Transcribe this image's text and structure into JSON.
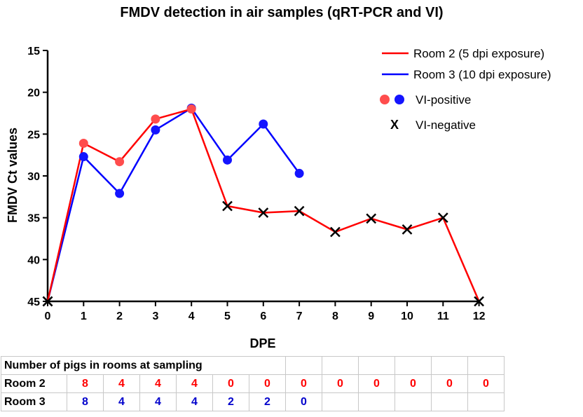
{
  "chart_data": {
    "type": "line",
    "title": "FMDV detection in air samples (qRT-PCR and VI)",
    "xlabel": "DPE",
    "ylabel": "FMDV Ct values",
    "x_ticks": [
      "0",
      "1",
      "2",
      "3",
      "4",
      "5",
      "6",
      "7",
      "8",
      "9",
      "10",
      "11",
      "12"
    ],
    "y_ticks": [
      "15",
      "20",
      "25",
      "30",
      "35",
      "40",
      "45"
    ],
    "xlim": [
      0,
      12
    ],
    "ylim": [
      45,
      15
    ],
    "y_inverted": true,
    "series": [
      {
        "name": "Room 2 (5 dpi exposure)",
        "color": "#ff0000",
        "marker_color": "#ff4d4d",
        "x": [
          0,
          1,
          2,
          3,
          4,
          5,
          6,
          7,
          8,
          9,
          10,
          11,
          12
        ],
        "y": [
          45,
          26.1,
          28.3,
          23.2,
          22.0,
          33.6,
          34.4,
          34.2,
          36.7,
          35.1,
          36.4,
          35.0,
          45
        ],
        "vi": [
          "neg",
          "pos",
          "pos",
          "pos",
          "pos",
          "neg",
          "neg",
          "neg",
          "neg",
          "neg",
          "neg",
          "neg",
          "neg"
        ]
      },
      {
        "name": "Room 3 (10 dpi exposure)",
        "color": "#0000ff",
        "marker_color": "#1414ff",
        "x": [
          0,
          1,
          2,
          3,
          4,
          5,
          6,
          7
        ],
        "y": [
          45,
          27.7,
          32.1,
          24.5,
          21.9,
          28.1,
          23.8,
          29.7
        ],
        "vi": [
          "neg",
          "pos",
          "pos",
          "pos",
          "pos",
          "pos",
          "pos",
          "pos"
        ]
      }
    ],
    "legend": {
      "position": "top-right",
      "vi_positive": "VI-positive",
      "vi_negative": "VI-negative",
      "vi_negative_symbol": "X"
    }
  },
  "table": {
    "header": "Number of pigs in  rooms at sampling",
    "rows": [
      {
        "label": "Room 2",
        "color": "#ff0000",
        "values": [
          "8",
          "4",
          "4",
          "4",
          "0",
          "0",
          "0",
          "0",
          "0",
          "0",
          "0",
          "0"
        ]
      },
      {
        "label": "Room 3",
        "color": "#0000cc",
        "values": [
          "8",
          "4",
          "4",
          "4",
          "2",
          "2",
          "0",
          "",
          "",
          "",
          "",
          ""
        ]
      }
    ]
  }
}
